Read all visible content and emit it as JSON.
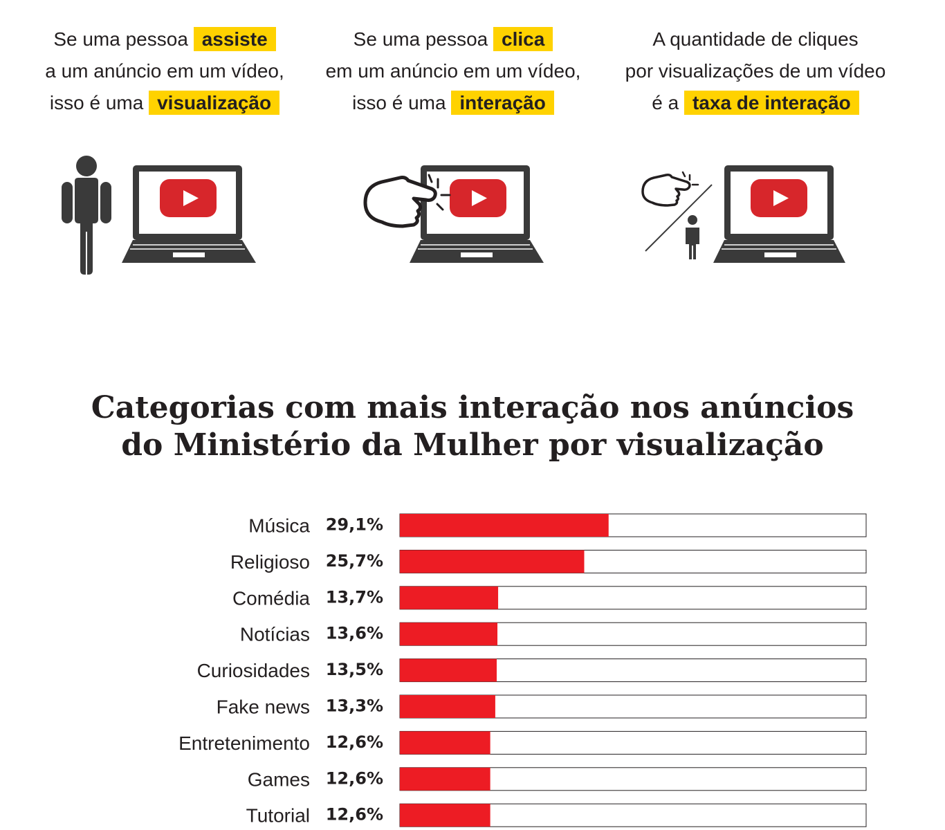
{
  "explainers": [
    {
      "line1_pre": "Se uma pessoa",
      "line1_hl": "assiste",
      "line2": "a um anúncio em um vídeo,",
      "line3_pre": "isso é uma",
      "line3_hl": "visualização"
    },
    {
      "line1_pre": "Se uma pessoa",
      "line1_hl": "clica",
      "line2": "em um anúncio em um vídeo,",
      "line3_pre": "isso é uma",
      "line3_hl": "interação"
    },
    {
      "line1": "A quantidade de cliques",
      "line2": "por visualizações de um vídeo",
      "line3_pre": "é a",
      "line3_hl": "taxa de interação"
    }
  ],
  "icons": [
    "person-icon",
    "laptop-icon",
    "play-button-icon",
    "pointing-hand-icon",
    "ratio-icon"
  ],
  "colors": {
    "highlight": "#ffd200",
    "bar": "#ed1c24",
    "play_button": "#d7262b",
    "text": "#231f20"
  },
  "chart_data": {
    "type": "bar",
    "orientation": "horizontal",
    "title_line1": "Categorias com mais interação nos anúncios",
    "title_line2": "do Ministério da Mulher por visualização",
    "categories": [
      "Música",
      "Religioso",
      "Comédia",
      "Notícias",
      "Curiosidades",
      "Fake news",
      "Entretenimento",
      "Games",
      "Tutorial"
    ],
    "values": [
      29.1,
      25.7,
      13.7,
      13.6,
      13.5,
      13.3,
      12.6,
      12.6,
      12.6
    ],
    "value_labels": [
      "29,1%",
      "25,7%",
      "13,7%",
      "13,6%",
      "13,5%",
      "13,3%",
      "12,6%",
      "12,6%",
      "12,6%"
    ],
    "xlim": [
      0,
      65
    ],
    "grid": false,
    "legend": "none"
  }
}
